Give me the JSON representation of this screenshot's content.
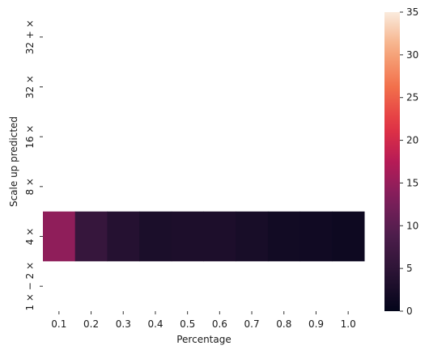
{
  "chart_data": {
    "type": "heatmap",
    "title": "",
    "xlabel": "Percentage",
    "ylabel": "Scale up predicted",
    "x_categories": [
      "0.1",
      "0.2",
      "0.3",
      "0.4",
      "0.5",
      "0.6",
      "0.7",
      "0.8",
      "0.9",
      "1.0"
    ],
    "y_categories": [
      "32 + ×",
      "32 ×",
      "16 ×",
      "8 ×",
      "4 ×",
      "1 × − 2 ×"
    ],
    "rows": [
      {
        "label": "32 + ×",
        "values": [
          null,
          null,
          null,
          null,
          null,
          null,
          null,
          null,
          null,
          null
        ]
      },
      {
        "label": "32 ×",
        "values": [
          null,
          null,
          null,
          null,
          null,
          null,
          null,
          null,
          null,
          null
        ]
      },
      {
        "label": "16 ×",
        "values": [
          null,
          null,
          null,
          null,
          null,
          null,
          null,
          null,
          null,
          null
        ]
      },
      {
        "label": "8 ×",
        "values": [
          null,
          null,
          null,
          null,
          null,
          null,
          null,
          null,
          null,
          null
        ]
      },
      {
        "label": "4 ×",
        "values": [
          14.5,
          6.0,
          4.0,
          2.8,
          3.0,
          3.0,
          2.5,
          1.8,
          1.6,
          1.3
        ]
      },
      {
        "label": "1 × − 2 ×",
        "values": [
          null,
          null,
          null,
          null,
          null,
          null,
          null,
          null,
          null,
          null
        ]
      }
    ],
    "colorbar": {
      "range": [
        0,
        35
      ],
      "ticks": [
        "0",
        "5",
        "10",
        "15",
        "20",
        "25",
        "30",
        "35"
      ],
      "colormap": "rocket"
    }
  }
}
